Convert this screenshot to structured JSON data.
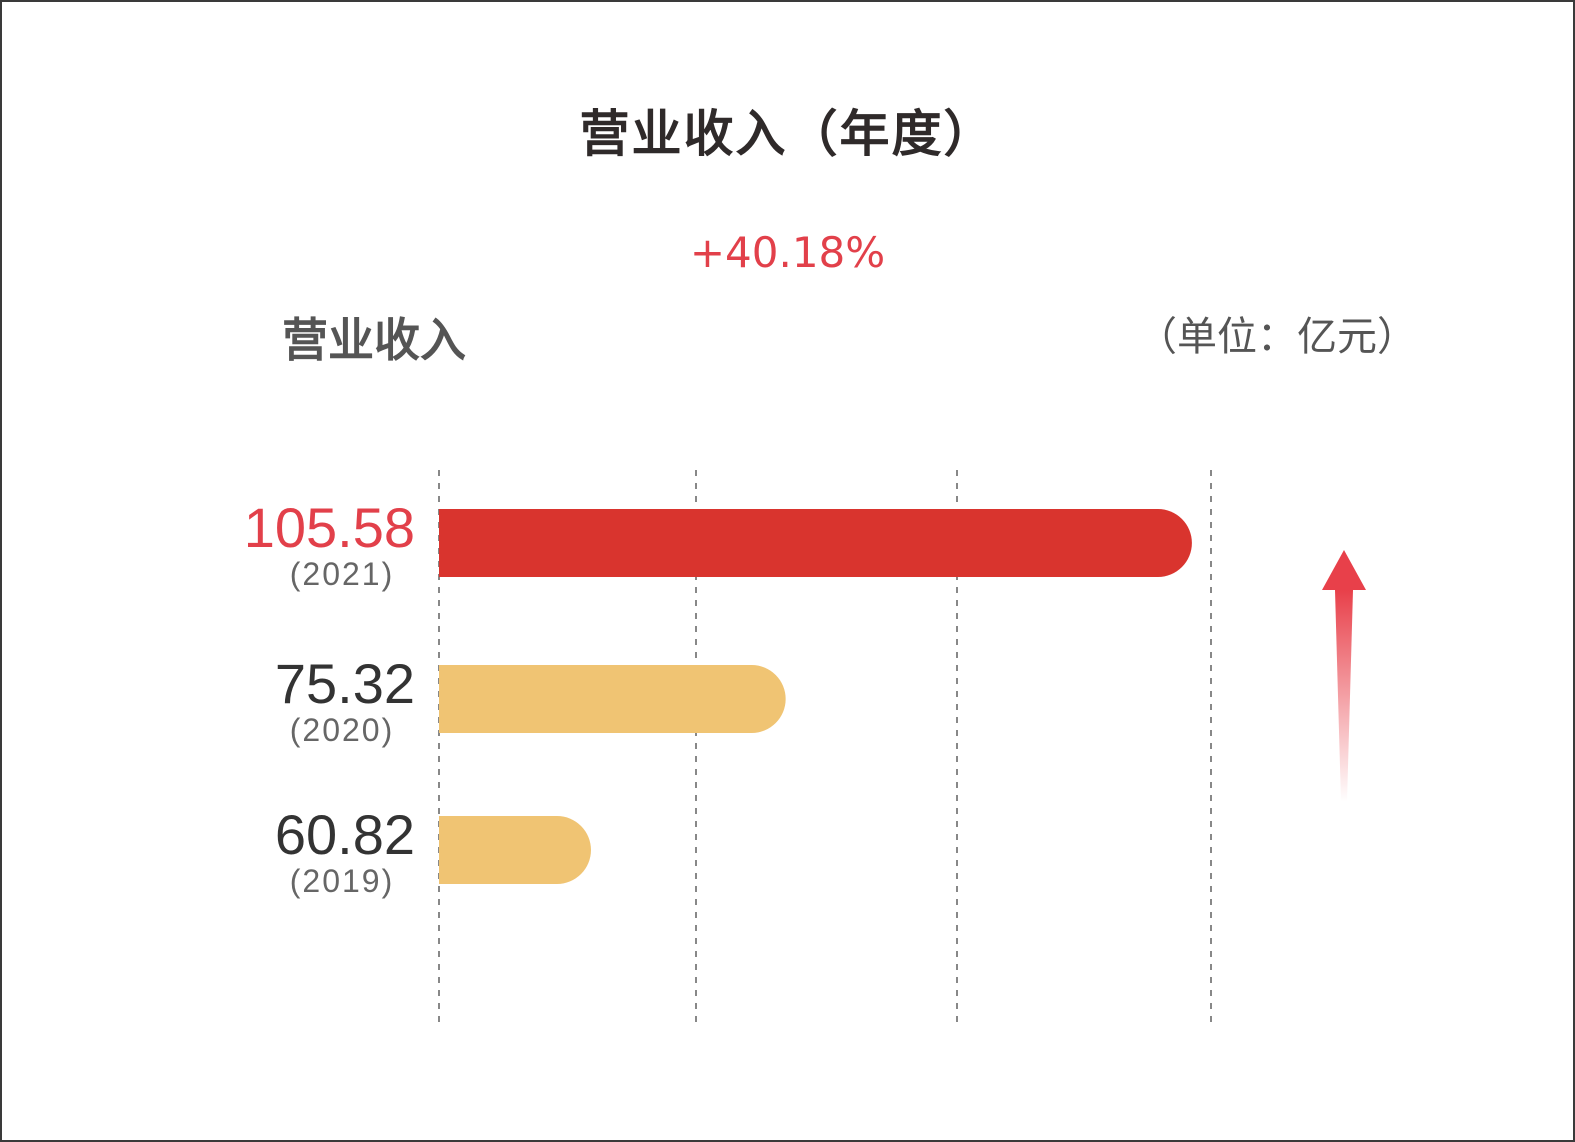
{
  "chart_data": {
    "type": "bar",
    "orientation": "horizontal",
    "title": "营业收入（年度）",
    "growth_label": "+40.18%",
    "subtitle": "营业收入",
    "unit_label": "（单位：亿元）",
    "categories": [
      "(2021)",
      "(2020)",
      "(2019)"
    ],
    "values": [
      105.58,
      75.32,
      60.82
    ],
    "value_labels": [
      "105.58",
      "75.32",
      "60.82"
    ],
    "xlim": [
      49.5,
      107
    ],
    "grid": true,
    "grid_style": "dashed vertical",
    "colors": {
      "highlight": "#d9342e",
      "normal": "#f0c473",
      "highlight_label": "#e2404a",
      "label": "#333333",
      "year": "#666666",
      "arrow": "#e8404a"
    },
    "trend_icon": "arrow-up-icon"
  }
}
